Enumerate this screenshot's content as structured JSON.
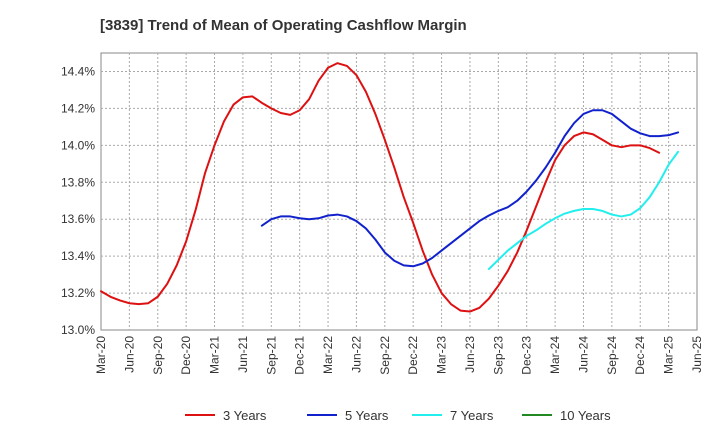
{
  "chart_data": {
    "type": "line",
    "title": "[3839]  Trend of Mean of Operating Cashflow Margin",
    "xlabel": "",
    "ylabel": "",
    "x_start": "2020-03",
    "x_ticks": [
      "Mar-20",
      "Jun-20",
      "Sep-20",
      "Dec-20",
      "Mar-21",
      "Jun-21",
      "Sep-21",
      "Dec-21",
      "Mar-22",
      "Jun-22",
      "Sep-22",
      "Dec-22",
      "Mar-23",
      "Jun-23",
      "Sep-23",
      "Dec-23",
      "Mar-24",
      "Jun-24",
      "Sep-24",
      "Dec-24",
      "Mar-25",
      "Jun-25"
    ],
    "y_ticks": [
      "13.0%",
      "13.2%",
      "13.4%",
      "13.6%",
      "13.8%",
      "14.0%",
      "14.2%",
      "14.4%"
    ],
    "ylim": [
      13.0,
      14.5
    ],
    "grid": true,
    "legend_position": "bottom",
    "series": [
      {
        "name": "3 Years",
        "color": "#dd1111",
        "start": "2020-03",
        "values": [
          13.21,
          13.18,
          13.16,
          13.145,
          13.14,
          13.145,
          13.18,
          13.25,
          13.35,
          13.48,
          13.65,
          13.85,
          14.0,
          14.13,
          14.22,
          14.26,
          14.265,
          14.23,
          14.2,
          14.175,
          14.165,
          14.19,
          14.25,
          14.35,
          14.42,
          14.445,
          14.43,
          14.38,
          14.29,
          14.17,
          14.03,
          13.88,
          13.72,
          13.58,
          13.43,
          13.3,
          13.2,
          13.14,
          13.105,
          13.1,
          13.12,
          13.17,
          13.24,
          13.32,
          13.42,
          13.54,
          13.67,
          13.8,
          13.92,
          14.0,
          14.05,
          14.07,
          14.06,
          14.03,
          14.0,
          13.99,
          14.0,
          14.0,
          13.985,
          13.96
        ]
      },
      {
        "name": "5 Years",
        "color": "#1122cc",
        "start": "2021-08",
        "values": [
          13.565,
          13.6,
          13.615,
          13.615,
          13.605,
          13.6,
          13.605,
          13.62,
          13.625,
          13.615,
          13.59,
          13.55,
          13.49,
          13.42,
          13.375,
          13.35,
          13.345,
          13.36,
          13.39,
          13.43,
          13.47,
          13.51,
          13.55,
          13.59,
          13.62,
          13.645,
          13.665,
          13.7,
          13.75,
          13.81,
          13.88,
          13.96,
          14.05,
          14.12,
          14.17,
          14.19,
          14.19,
          14.17,
          14.13,
          14.09,
          14.065,
          14.05,
          14.05,
          14.055,
          14.07
        ]
      },
      {
        "name": "7 Years",
        "color": "#22eeee",
        "start": "2023-08",
        "values": [
          13.33,
          13.38,
          13.43,
          13.47,
          13.51,
          13.54,
          13.575,
          13.605,
          13.63,
          13.645,
          13.655,
          13.655,
          13.645,
          13.625,
          13.615,
          13.625,
          13.66,
          13.72,
          13.8,
          13.895,
          13.965
        ]
      },
      {
        "name": "10 Years",
        "color": "#228822",
        "start": "2025-03",
        "values": []
      }
    ]
  }
}
